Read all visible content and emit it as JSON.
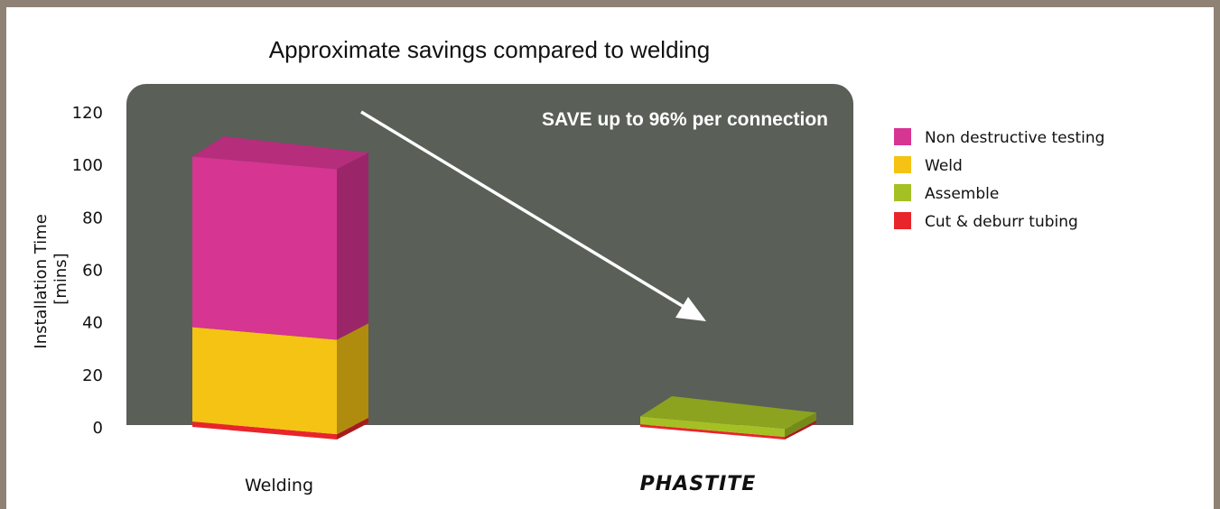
{
  "colors": {
    "frame": "#8e8274",
    "plot_background": "#5a5f58",
    "non_destructive_testing": "#d63592",
    "weld": "#f5c314",
    "assemble": "#a4c024",
    "cut_deburr": "#e8252a",
    "arrow": "#ffffff"
  },
  "callout": "SAVE up to 96% per connection",
  "brand_logo_text": "PHASTITE",
  "chart_data": {
    "type": "bar",
    "stacked": true,
    "three_d": true,
    "title": "Approximate savings compared to welding",
    "ylabel": "Installation Time\n[mins]",
    "ylabel_lines": [
      "Installation Time",
      "[mins]"
    ],
    "xlabel": "",
    "ylim": [
      0,
      120
    ],
    "yticks": [
      0,
      20,
      40,
      60,
      80,
      100,
      120
    ],
    "categories": [
      "Welding",
      "PHASTITE"
    ],
    "category_labels": [
      "Welding",
      ""
    ],
    "series": [
      {
        "name": "Cut & deburr tubing",
        "values": [
          2,
          1
        ]
      },
      {
        "name": "Assemble",
        "values": [
          0,
          3
        ]
      },
      {
        "name": "Weld",
        "values": [
          36,
          0
        ]
      },
      {
        "name": "Non destructive testing",
        "values": [
          65,
          0
        ]
      }
    ],
    "legend": {
      "placement": "right",
      "entries": [
        "Non destructive testing",
        "Weld",
        "Assemble",
        "Cut & deburr tubing"
      ]
    },
    "grid": false
  }
}
